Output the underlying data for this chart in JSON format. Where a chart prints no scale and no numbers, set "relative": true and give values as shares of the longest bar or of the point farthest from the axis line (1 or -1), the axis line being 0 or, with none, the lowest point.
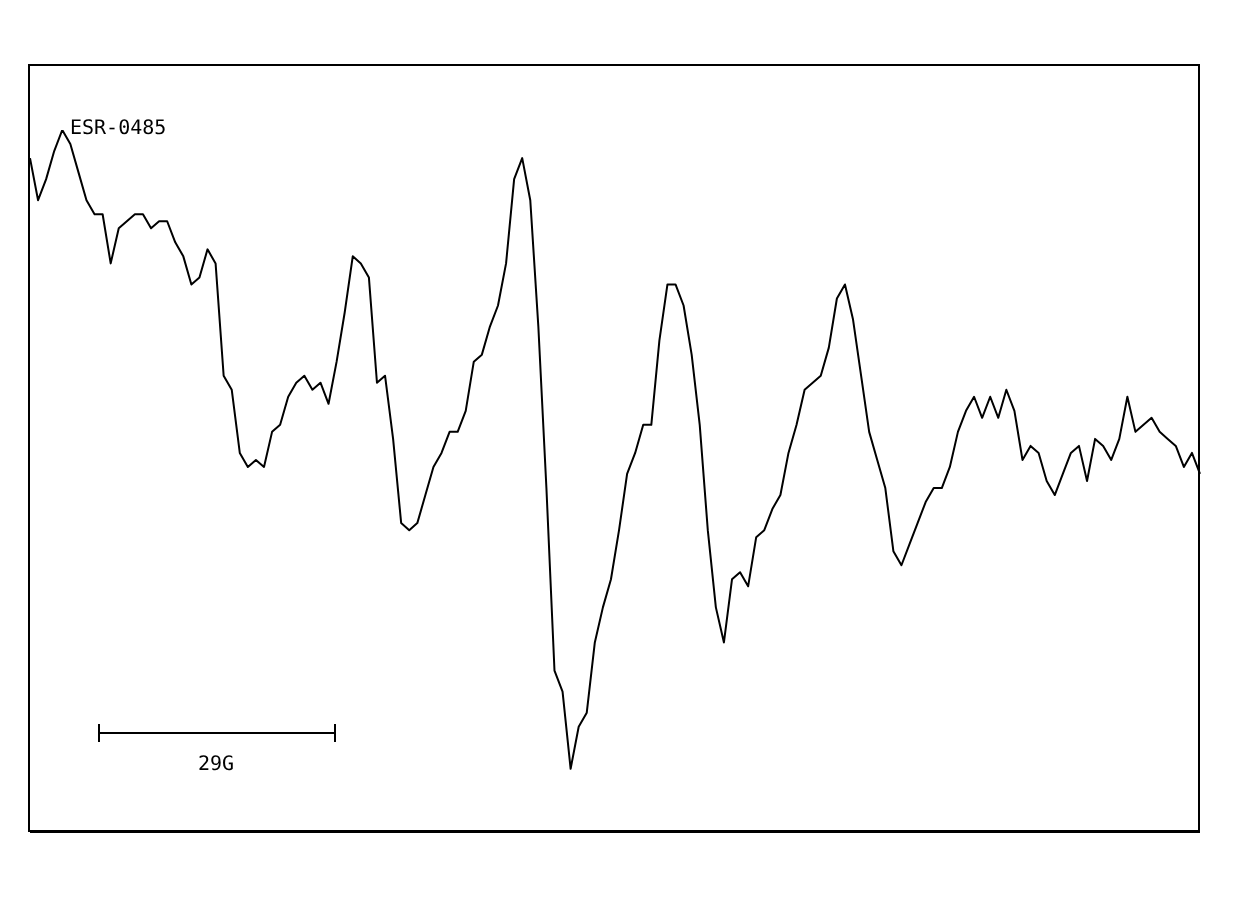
{
  "chart_data": {
    "type": "line",
    "title": "ESR-0485",
    "annotations": [
      "29G"
    ],
    "relative": true,
    "categories": [
      null,
      null,
      null,
      null,
      null,
      null,
      null,
      null,
      null,
      null,
      null,
      null,
      null,
      null,
      null,
      null,
      null,
      null,
      null,
      null,
      null,
      null,
      null,
      null,
      null,
      null,
      null,
      null,
      null,
      null,
      null,
      null,
      null,
      null,
      null,
      null,
      null,
      null,
      null,
      null,
      null,
      null,
      null,
      null,
      null,
      null,
      null,
      null,
      null,
      null,
      null,
      null,
      null,
      null,
      null,
      null,
      null,
      null,
      null,
      null,
      null,
      null,
      null,
      null,
      null,
      null,
      null,
      null,
      null,
      null,
      null,
      null,
      null,
      null,
      null,
      null,
      null,
      null,
      null,
      null,
      null,
      null,
      null,
      null,
      null,
      null,
      null,
      null,
      null,
      null,
      null,
      null,
      null,
      null,
      null,
      null,
      null,
      null,
      null,
      null,
      null,
      null,
      null,
      null,
      null,
      null,
      null,
      null,
      null,
      null,
      null,
      null,
      null,
      null,
      null,
      null,
      null,
      null,
      null,
      null,
      null,
      null,
      null,
      null,
      null,
      null,
      null,
      null,
      null,
      null,
      null,
      null,
      null,
      null,
      null,
      null,
      null,
      null,
      null,
      null,
      null,
      null,
      null,
      null,
      null,
      null
    ],
    "series": [
      {
        "color": "#000000",
        "values": [
          0.96,
          0.9,
          0.93,
          0.97,
          1.0,
          0.98,
          0.94,
          0.9,
          0.88,
          0.88,
          0.81,
          0.86,
          0.87,
          0.88,
          0.88,
          0.86,
          0.87,
          0.87,
          0.84,
          0.82,
          0.78,
          0.79,
          0.83,
          0.81,
          0.65,
          0.63,
          0.54,
          0.52,
          0.53,
          0.52,
          0.57,
          0.58,
          0.62,
          0.64,
          0.65,
          0.63,
          0.64,
          0.61,
          0.67,
          0.74,
          0.82,
          0.81,
          0.79,
          0.64,
          0.65,
          0.56,
          0.44,
          0.43,
          0.44,
          0.48,
          0.52,
          0.54,
          0.57,
          0.57,
          0.6,
          0.67,
          0.68,
          0.72,
          0.75,
          0.81,
          0.93,
          0.96,
          0.9,
          0.72,
          0.49,
          0.23,
          0.2,
          0.09,
          0.15,
          0.17,
          0.27,
          0.32,
          0.36,
          0.43,
          0.51,
          0.54,
          0.58,
          0.58,
          0.7,
          0.78,
          0.78,
          0.75,
          0.68,
          0.58,
          0.43,
          0.32,
          0.27,
          0.36,
          0.37,
          0.35,
          0.42,
          0.43,
          0.46,
          0.48,
          0.54,
          0.58,
          0.63,
          0.64,
          0.65,
          0.69,
          0.76,
          0.78,
          0.73,
          0.65,
          0.57,
          0.53,
          0.49,
          0.4,
          0.38,
          0.41,
          0.44,
          0.47,
          0.49,
          0.49,
          0.52,
          0.57,
          0.6,
          0.62,
          0.59,
          0.62,
          0.59,
          0.63,
          0.6,
          0.53,
          0.55,
          0.54,
          0.5,
          0.48,
          0.51,
          0.54,
          0.55,
          0.5,
          0.56,
          0.55,
          0.53,
          0.56,
          0.62,
          0.57,
          0.58,
          0.59,
          0.57,
          0.56,
          0.55,
          0.52,
          0.54,
          0.51
        ]
      }
    ]
  }
}
